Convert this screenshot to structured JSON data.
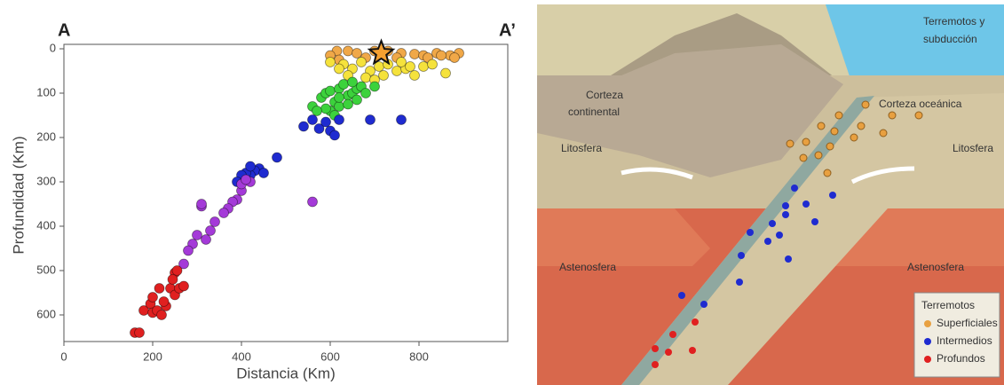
{
  "chart_data": {
    "type": "scatter",
    "label_left": "A",
    "label_right": "A’",
    "x_label": "Distancia (Km)",
    "y_label": "Profundidad (Km)",
    "xlim": [
      0,
      1000
    ],
    "ylim": [
      -10,
      660
    ],
    "y_inverted": true,
    "xticks": [
      0,
      200,
      400,
      600,
      800
    ],
    "yticks": [
      0,
      100,
      200,
      300,
      400,
      500,
      600
    ],
    "star": {
      "x": 715,
      "y": 10,
      "color": "#f5a030"
    },
    "series": [
      {
        "color": "#f0a848",
        "x": [
          615,
          640,
          660,
          700,
          730,
          760,
          790,
          810,
          840,
          870,
          890,
          620,
          680,
          750,
          880,
          600,
          820,
          850
        ],
        "values": [
          5,
          5,
          10,
          5,
          5,
          10,
          12,
          15,
          10,
          15,
          10,
          25,
          20,
          20,
          20,
          15,
          20,
          15
        ]
      },
      {
        "color": "#f5e23c",
        "x": [
          600,
          630,
          650,
          670,
          690,
          710,
          730,
          750,
          770,
          790,
          810,
          830,
          860,
          640,
          680,
          720,
          760,
          700,
          780,
          620
        ],
        "values": [
          30,
          35,
          45,
          30,
          50,
          40,
          35,
          50,
          45,
          60,
          40,
          35,
          55,
          60,
          65,
          60,
          30,
          70,
          40,
          45
        ]
      },
      {
        "color": "#3cd23c",
        "x": [
          560,
          580,
          590,
          600,
          610,
          620,
          630,
          640,
          650,
          660,
          670,
          680,
          600,
          620,
          640,
          660,
          700,
          590,
          610,
          570,
          650,
          620
        ],
        "values": [
          130,
          110,
          100,
          95,
          120,
          90,
          80,
          105,
          100,
          90,
          85,
          100,
          140,
          130,
          125,
          115,
          85,
          135,
          150,
          140,
          75,
          110
        ]
      },
      {
        "color": "#1f2bd0",
        "x": [
          540,
          560,
          575,
          590,
          600,
          610,
          620,
          690,
          760,
          480,
          440,
          430,
          420,
          410,
          400,
          390,
          450,
          420
        ],
        "values": [
          175,
          160,
          180,
          165,
          185,
          195,
          160,
          160,
          160,
          245,
          270,
          275,
          285,
          280,
          285,
          300,
          280,
          265
        ]
      },
      {
        "color": "#a43ad8",
        "x": [
          560,
          420,
          400,
          390,
          380,
          370,
          360,
          340,
          310,
          300,
          320,
          290,
          280,
          330,
          270,
          400,
          410,
          310
        ],
        "values": [
          345,
          300,
          320,
          340,
          345,
          360,
          370,
          390,
          355,
          420,
          430,
          440,
          455,
          410,
          485,
          305,
          295,
          350
        ]
      },
      {
        "color": "#e02020",
        "x": [
          160,
          170,
          180,
          195,
          200,
          210,
          220,
          230,
          215,
          240,
          250,
          260,
          270,
          250,
          245,
          255,
          200,
          225
        ],
        "values": [
          640,
          640,
          590,
          575,
          595,
          590,
          600,
          580,
          540,
          540,
          555,
          540,
          535,
          505,
          520,
          500,
          560,
          570
        ]
      }
    ]
  },
  "diagram": {
    "title": [
      "Terremotos y",
      "subducción"
    ],
    "continental_crust": [
      "Corteza",
      "continental"
    ],
    "oceanic_crust": "Corteza oceánica",
    "lithosphere_left": "Litosfera",
    "lithosphere_right": "Litosfera",
    "asthenosphere_left": "Astenosfera",
    "asthenosphere_right": "Astenosfera",
    "legend": {
      "title": "Terremotos",
      "items": [
        "Superficiales",
        "Intermedios",
        "Profundos"
      ]
    }
  }
}
